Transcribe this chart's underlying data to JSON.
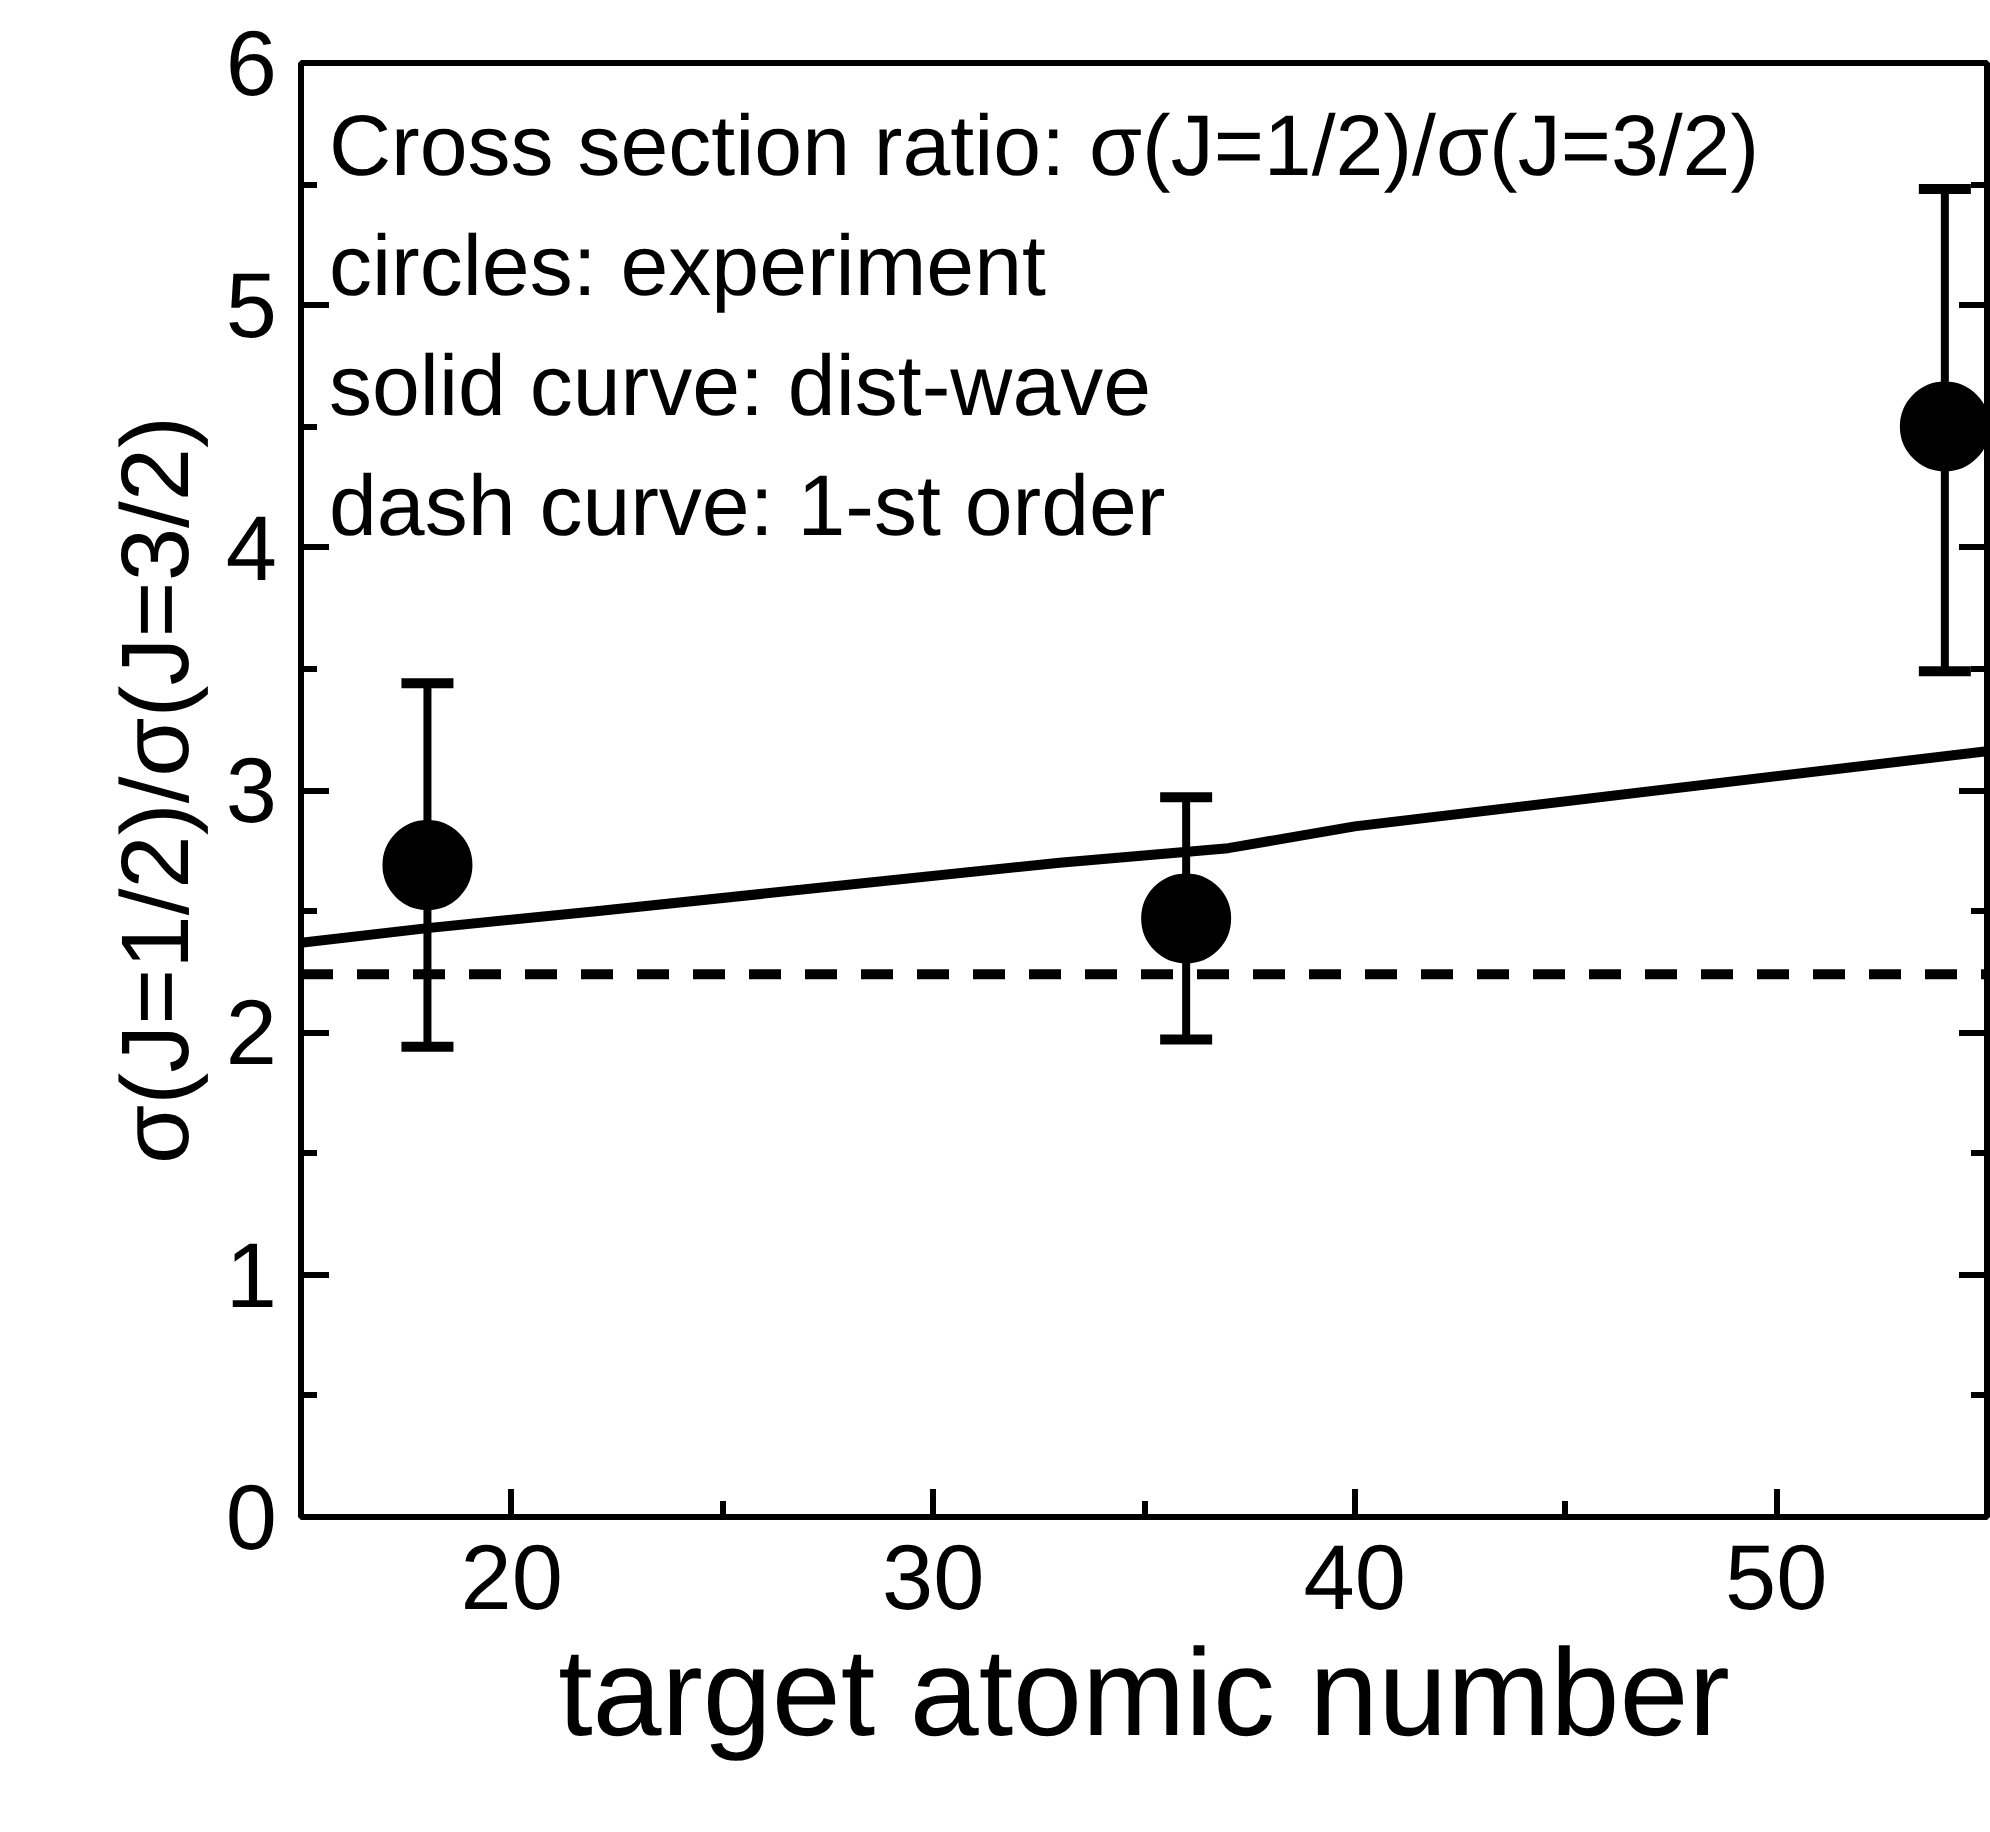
{
  "chart_data": {
    "type": "scatter",
    "xlabel": "target atomic number",
    "ylabel": "σ(J=1/2)/σ(J=3/2)",
    "annotations": [
      "Cross section ratio: σ(J=1/2)/σ(J=3/2)",
      "circles: experiment",
      "solid curve: dist-wave",
      "dash curve: 1-st order"
    ],
    "xlim": [
      15,
      55
    ],
    "ylim": [
      0,
      6
    ],
    "xticks": [
      20,
      {
        "value": 25,
        "label": null
      },
      30,
      {
        "value": 35,
        "label": null
      },
      40,
      {
        "value": 45,
        "label": null
      },
      50
    ],
    "yticks": [
      0,
      {
        "value": 0.5,
        "label": null
      },
      1,
      {
        "value": 1.5,
        "label": null
      },
      2,
      {
        "value": 2.5,
        "label": null
      },
      3,
      {
        "value": 3.5,
        "label": null
      },
      4,
      {
        "value": 4.5,
        "label": null
      },
      5,
      {
        "value": 5.5,
        "label": null
      },
      6
    ],
    "grid": false,
    "series": [
      {
        "color": "#000000",
        "marker": "circle",
        "x": [
          18,
          36,
          54
        ],
        "values": [
          2.69,
          2.47,
          4.5
        ],
        "errors": [
          [
            1.94,
            3.44
          ],
          [
            1.97,
            2.97
          ],
          [
            3.49,
            5.48
          ]
        ]
      },
      {
        "type": "line",
        "color": "#000000",
        "line_style": "solid",
        "x": [
          15,
          18,
          22,
          33,
          37,
          40,
          55
        ],
        "values": [
          2.37,
          2.43,
          2.5,
          2.7,
          2.76,
          2.85,
          3.16
        ]
      },
      {
        "type": "line",
        "color": "#000000",
        "line_style": "dashed",
        "x": [
          15,
          55
        ],
        "values": [
          2.24,
          2.24
        ]
      }
    ]
  }
}
